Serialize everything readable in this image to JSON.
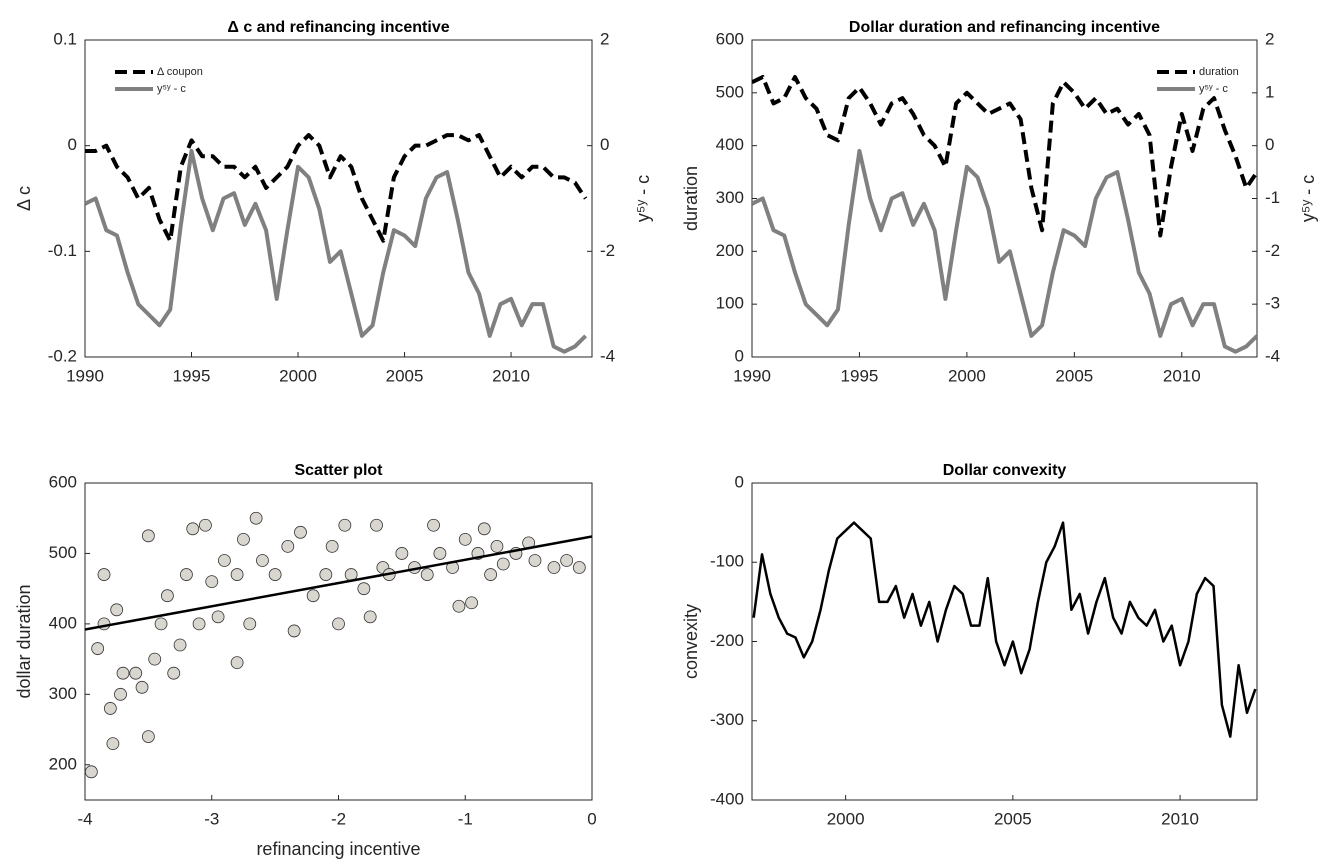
{
  "chart_data": [
    {
      "type": "line",
      "title": "Δ c and refinancing incentive",
      "ylabel": "Δ c",
      "y2label": "y⁵ʸ - c",
      "legend": "upper left",
      "xlim": [
        1990,
        2013.8
      ],
      "xticks": [
        1990,
        1995,
        2000,
        2005,
        2010
      ],
      "ylim": [
        -0.2,
        0.1
      ],
      "yticks": [
        -0.2,
        -0.1,
        0,
        0.1
      ],
      "y2lim": [
        -4,
        2
      ],
      "y2ticks": [
        -4,
        -2,
        0,
        2
      ],
      "series": [
        {
          "name": "Δ coupon",
          "color": "#000000",
          "style": "dashed",
          "x": [
            1990,
            1990.5,
            1991,
            1991.5,
            1992,
            1992.5,
            1993,
            1993.5,
            1994,
            1994.5,
            1995,
            1995.5,
            1996,
            1996.5,
            1997,
            1997.5,
            1998,
            1998.5,
            1999,
            1999.5,
            2000,
            2000.5,
            2001,
            2001.5,
            2002,
            2002.5,
            2003,
            2003.5,
            2004,
            2004.5,
            2005,
            2005.5,
            2006,
            2006.5,
            2007,
            2007.5,
            2008,
            2008.5,
            2009,
            2009.5,
            2010,
            2010.5,
            2011,
            2011.5,
            2012,
            2012.5,
            2013,
            2013.5
          ],
          "values": [
            -0.005,
            -0.005,
            0,
            -0.02,
            -0.03,
            -0.05,
            -0.04,
            -0.07,
            -0.09,
            -0.02,
            0.005,
            -0.01,
            -0.01,
            -0.02,
            -0.02,
            -0.03,
            -0.02,
            -0.04,
            -0.03,
            -0.02,
            0,
            0.01,
            0,
            -0.03,
            -0.01,
            -0.02,
            -0.05,
            -0.07,
            -0.09,
            -0.03,
            -0.01,
            0,
            0,
            0.005,
            0.01,
            0.01,
            0.005,
            0.01,
            -0.01,
            -0.03,
            -0.02,
            -0.03,
            -0.02,
            -0.02,
            -0.03,
            -0.03,
            -0.035,
            -0.05
          ]
        },
        {
          "name": "y⁵ʸ - c",
          "color": "#808080",
          "style": "solid",
          "axis": "y2",
          "x": [
            1990,
            1990.5,
            1991,
            1991.5,
            1992,
            1992.5,
            1993,
            1993.5,
            1994,
            1994.5,
            1995,
            1995.5,
            1996,
            1996.5,
            1997,
            1997.5,
            1998,
            1998.5,
            1999,
            1999.5,
            2000,
            2000.5,
            2001,
            2001.5,
            2002,
            2002.5,
            2003,
            2003.5,
            2004,
            2004.5,
            2005,
            2005.5,
            2006,
            2006.5,
            2007,
            2007.5,
            2008,
            2008.5,
            2009,
            2009.5,
            2010,
            2010.5,
            2011,
            2011.5,
            2012,
            2012.5,
            2013,
            2013.5
          ],
          "values": [
            -1.1,
            -1.0,
            -1.6,
            -1.7,
            -2.4,
            -3.0,
            -3.2,
            -3.4,
            -3.1,
            -1.5,
            -0.1,
            -1.0,
            -1.6,
            -1.0,
            -0.9,
            -1.5,
            -1.1,
            -1.6,
            -2.9,
            -1.6,
            -0.4,
            -0.6,
            -1.2,
            -2.2,
            -2.0,
            -2.8,
            -3.6,
            -3.4,
            -2.4,
            -1.6,
            -1.7,
            -1.9,
            -1.0,
            -0.6,
            -0.5,
            -1.4,
            -2.4,
            -2.8,
            -3.6,
            -3.0,
            -2.9,
            -3.4,
            -3.0,
            -3.0,
            -3.8,
            -3.9,
            -3.8,
            -3.6
          ]
        }
      ]
    },
    {
      "type": "line",
      "title": "Dollar duration and refinancing incentive",
      "ylabel": "duration",
      "y2label": "y⁵ʸ - c",
      "legend": "upper right",
      "xlim": [
        1990,
        2013.5
      ],
      "xticks": [
        1990,
        1995,
        2000,
        2005,
        2010
      ],
      "ylim": [
        0,
        600
      ],
      "yticks": [
        0,
        100,
        200,
        300,
        400,
        500,
        600
      ],
      "y2lim": [
        -4,
        2
      ],
      "y2ticks": [
        -4,
        -3,
        -2,
        -1,
        0,
        1,
        2
      ],
      "series": [
        {
          "name": "duration",
          "color": "#000000",
          "style": "dashed",
          "x": [
            1990,
            1990.5,
            1991,
            1991.5,
            1992,
            1992.5,
            1993,
            1993.5,
            1994,
            1994.5,
            1995,
            1995.5,
            1996,
            1996.5,
            1997,
            1997.5,
            1998,
            1998.5,
            1999,
            1999.5,
            2000,
            2000.5,
            2001,
            2001.5,
            2002,
            2002.5,
            2003,
            2003.5,
            2004,
            2004.5,
            2005,
            2005.5,
            2006,
            2006.5,
            2007,
            2007.5,
            2008,
            2008.5,
            2009,
            2009.5,
            2010,
            2010.5,
            2011,
            2011.5,
            2012,
            2012.5,
            2013,
            2013.5
          ],
          "values": [
            520,
            530,
            480,
            490,
            530,
            490,
            470,
            420,
            410,
            490,
            510,
            480,
            440,
            480,
            490,
            460,
            420,
            400,
            360,
            480,
            500,
            480,
            460,
            470,
            480,
            450,
            320,
            240,
            480,
            520,
            500,
            470,
            490,
            460,
            470,
            440,
            460,
            420,
            230,
            360,
            460,
            390,
            470,
            490,
            430,
            380,
            320,
            350
          ]
        },
        {
          "name": "y⁵ʸ - c",
          "color": "#808080",
          "style": "solid",
          "axis": "y2",
          "x": [
            1990,
            1990.5,
            1991,
            1991.5,
            1992,
            1992.5,
            1993,
            1993.5,
            1994,
            1994.5,
            1995,
            1995.5,
            1996,
            1996.5,
            1997,
            1997.5,
            1998,
            1998.5,
            1999,
            1999.5,
            2000,
            2000.5,
            2001,
            2001.5,
            2002,
            2002.5,
            2003,
            2003.5,
            2004,
            2004.5,
            2005,
            2005.5,
            2006,
            2006.5,
            2007,
            2007.5,
            2008,
            2008.5,
            2009,
            2009.5,
            2010,
            2010.5,
            2011,
            2011.5,
            2012,
            2012.5,
            2013,
            2013.5
          ],
          "values": [
            -1.1,
            -1.0,
            -1.6,
            -1.7,
            -2.4,
            -3.0,
            -3.2,
            -3.4,
            -3.1,
            -1.5,
            -0.1,
            -1.0,
            -1.6,
            -1.0,
            -0.9,
            -1.5,
            -1.1,
            -1.6,
            -2.9,
            -1.6,
            -0.4,
            -0.6,
            -1.2,
            -2.2,
            -2.0,
            -2.8,
            -3.6,
            -3.4,
            -2.4,
            -1.6,
            -1.7,
            -1.9,
            -1.0,
            -0.6,
            -0.5,
            -1.4,
            -2.4,
            -2.8,
            -3.6,
            -3.0,
            -2.9,
            -3.4,
            -3.0,
            -3.0,
            -3.8,
            -3.9,
            -3.8,
            -3.6
          ]
        }
      ]
    },
    {
      "type": "scatter",
      "title": "Scatter plot",
      "xlabel": "refinancing incentive",
      "ylabel": "dollar duration",
      "xlim": [
        -4,
        0
      ],
      "xticks": [
        -4,
        -3,
        -2,
        -1,
        0
      ],
      "ylim": [
        150,
        600
      ],
      "yticks": [
        200,
        300,
        400,
        500,
        600
      ],
      "series": [
        {
          "color": "#d9d6cf",
          "style": "marker",
          "x": [
            -3.95,
            -3.9,
            -3.85,
            -3.85,
            -3.8,
            -3.78,
            -3.75,
            -3.72,
            -3.7,
            -3.6,
            -3.55,
            -3.5,
            -3.5,
            -3.45,
            -3.4,
            -3.35,
            -3.3,
            -3.25,
            -3.2,
            -3.15,
            -3.1,
            -3.05,
            -3.0,
            -2.95,
            -2.9,
            -2.8,
            -2.8,
            -2.75,
            -2.7,
            -2.65,
            -2.6,
            -2.5,
            -2.4,
            -2.35,
            -2.3,
            -2.2,
            -2.1,
            -2.05,
            -2.0,
            -1.95,
            -1.9,
            -1.8,
            -1.75,
            -1.7,
            -1.65,
            -1.6,
            -1.5,
            -1.4,
            -1.3,
            -1.25,
            -1.2,
            -1.1,
            -1.05,
            -1.0,
            -0.95,
            -0.9,
            -0.85,
            -0.8,
            -0.75,
            -0.7,
            -0.6,
            -0.5,
            -0.45,
            -0.3,
            -0.2,
            -0.1
          ],
          "values": [
            190,
            365,
            400,
            470,
            280,
            230,
            420,
            300,
            330,
            330,
            310,
            240,
            525,
            350,
            400,
            440,
            330,
            370,
            470,
            535,
            400,
            540,
            460,
            410,
            490,
            345,
            470,
            520,
            400,
            550,
            490,
            470,
            510,
            390,
            530,
            440,
            470,
            510,
            400,
            540,
            470,
            450,
            410,
            540,
            480,
            470,
            500,
            480,
            470,
            540,
            500,
            480,
            425,
            520,
            430,
            500,
            535,
            470,
            510,
            485,
            500,
            515,
            490,
            480,
            490,
            480
          ]
        },
        {
          "color": "#000000",
          "style": "solid",
          "x": [
            -4,
            0
          ],
          "values": [
            392,
            524
          ]
        }
      ]
    },
    {
      "type": "line",
      "title": "Dollar convexity",
      "ylabel": "convexity",
      "xlim": [
        1997.2,
        2012.3
      ],
      "xticks": [
        2000,
        2005,
        2010
      ],
      "ylim": [
        -400,
        0
      ],
      "yticks": [
        -400,
        -300,
        -200,
        -100,
        0
      ],
      "series": [
        {
          "color": "#000000",
          "style": "solid",
          "x": [
            1997.25,
            1997.5,
            1997.75,
            1998,
            1998.25,
            1998.5,
            1998.75,
            1999,
            1999.25,
            1999.5,
            1999.75,
            2000,
            2000.25,
            2000.5,
            2000.75,
            2001,
            2001.25,
            2001.5,
            2001.75,
            2002,
            2002.25,
            2002.5,
            2002.75,
            2003,
            2003.25,
            2003.5,
            2003.75,
            2004,
            2004.25,
            2004.5,
            2004.75,
            2005,
            2005.25,
            2005.5,
            2005.75,
            2006,
            2006.25,
            2006.5,
            2006.75,
            2007,
            2007.25,
            2007.5,
            2007.75,
            2008,
            2008.25,
            2008.5,
            2008.75,
            2009,
            2009.25,
            2009.5,
            2009.75,
            2010,
            2010.25,
            2010.5,
            2010.75,
            2011,
            2011.25,
            2011.5,
            2011.75,
            2012,
            2012.25
          ],
          "values": [
            -170,
            -90,
            -140,
            -170,
            -190,
            -195,
            -220,
            -200,
            -160,
            -110,
            -70,
            -60,
            -50,
            -60,
            -70,
            -150,
            -150,
            -130,
            -170,
            -140,
            -180,
            -150,
            -200,
            -160,
            -130,
            -140,
            -180,
            -180,
            -120,
            -200,
            -230,
            -200,
            -240,
            -210,
            -150,
            -100,
            -80,
            -50,
            -160,
            -140,
            -190,
            -150,
            -120,
            -170,
            -190,
            -150,
            -170,
            -180,
            -160,
            -200,
            -180,
            -230,
            -200,
            -140,
            -120,
            -130,
            -280,
            -320,
            -230,
            -290,
            -260
          ]
        }
      ]
    }
  ]
}
